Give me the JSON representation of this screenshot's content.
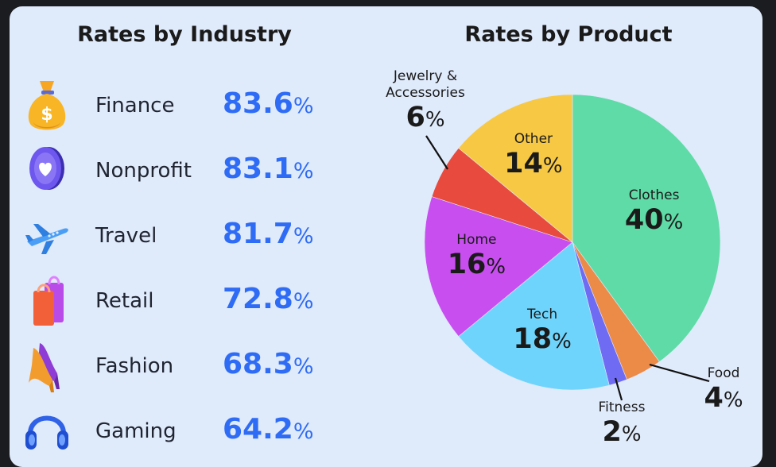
{
  "industry": {
    "title": "Rates by Industry",
    "rows": [
      {
        "name": "Finance",
        "value": "83.6",
        "unit": "%",
        "icon": "money-bag-icon"
      },
      {
        "name": "Nonprofit",
        "value": "83.1",
        "unit": "%",
        "icon": "heart-coin-icon"
      },
      {
        "name": "Travel",
        "value": "81.7",
        "unit": "%",
        "icon": "airplane-icon"
      },
      {
        "name": "Retail",
        "value": "72.8",
        "unit": "%",
        "icon": "shopping-bag-icon"
      },
      {
        "name": "Fashion",
        "value": "68.3",
        "unit": "%",
        "icon": "high-heels-icon"
      },
      {
        "name": "Gaming",
        "value": "64.2",
        "unit": "%",
        "icon": "headphones-icon"
      }
    ]
  },
  "product": {
    "title": "Rates by Product"
  },
  "chart_data": {
    "type": "pie",
    "title": "Rates by Product",
    "slices": [
      {
        "label": "Clothes",
        "value": 40,
        "value_text": "40",
        "unit": "%",
        "color": "#5fdba7"
      },
      {
        "label": "Food",
        "value": 4,
        "value_text": "4",
        "unit": "%",
        "color": "#ec8a48"
      },
      {
        "label": "Fitness",
        "value": 2,
        "value_text": "2",
        "unit": "%",
        "color": "#6f6bf2"
      },
      {
        "label": "Tech",
        "value": 18,
        "value_text": "18",
        "unit": "%",
        "color": "#6fd4fb"
      },
      {
        "label": "Home",
        "value": 16,
        "value_text": "16",
        "unit": "%",
        "color": "#c84ef0"
      },
      {
        "label": "Jewelry & Accessories",
        "value": 6,
        "value_text": "6",
        "unit": "%",
        "color": "#e84a3e"
      },
      {
        "label": "Other",
        "value": 14,
        "value_text": "14",
        "unit": "%",
        "color": "#f7c844"
      }
    ]
  }
}
